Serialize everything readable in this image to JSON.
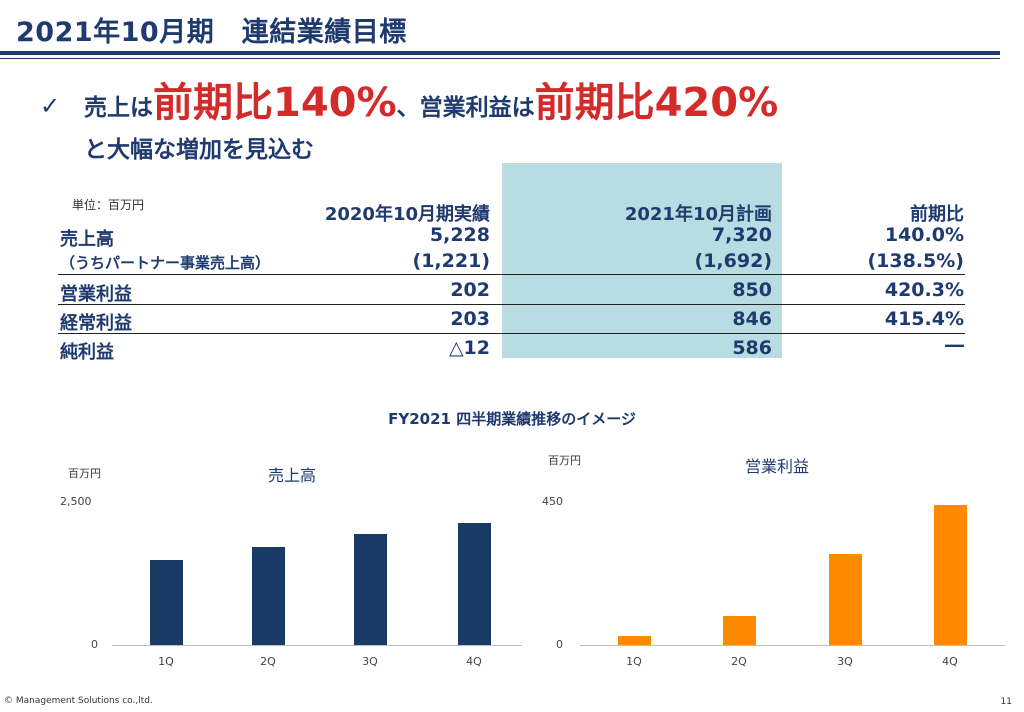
{
  "title": "2021年10月期　連結業績目標",
  "headline": {
    "part1": "売上は",
    "highlight1": "前期比140%",
    "part2": "、営業利益は",
    "highlight2": "前期比420%",
    "line2": "と大幅な増加を見込む"
  },
  "table": {
    "unit": "単位：百万円",
    "headers": [
      "2020年10月期実績",
      "2021年10月計画",
      "前期比"
    ],
    "rows": [
      {
        "label": "売上高",
        "v2020": "5,228",
        "v2021": "7,320",
        "ratio": "140.0%"
      },
      {
        "label": "（うちパートナー事業売上高）",
        "v2020": "(1,221)",
        "v2021": "(1,692)",
        "ratio": "(138.5%)"
      },
      {
        "label": "営業利益",
        "v2020": "202",
        "v2021": "850",
        "ratio": "420.3%"
      },
      {
        "label": "経常利益",
        "v2020": "203",
        "v2021": "846",
        "ratio": "415.4%"
      },
      {
        "label": "純利益",
        "v2020": "△12",
        "v2021": "586",
        "ratio": "―"
      }
    ]
  },
  "charts_title": "FY2021 四半期業績推移のイメージ",
  "chart_data": [
    {
      "type": "bar",
      "title": "売上高",
      "ylabel": "百万円",
      "categories": [
        "1Q",
        "2Q",
        "3Q",
        "4Q"
      ],
      "values": [
        1500,
        1720,
        1960,
        2140
      ],
      "ylim": [
        0,
        2500
      ],
      "yticks": [
        "0",
        "2,500"
      ],
      "color": "#1a3a66",
      "grid": false
    },
    {
      "type": "bar",
      "title": "営業利益",
      "ylabel": "百万円",
      "categories": [
        "1Q",
        "2Q",
        "3Q",
        "4Q"
      ],
      "values": [
        27,
        92,
        288,
        443
      ],
      "ylim": [
        0,
        450
      ],
      "yticks": [
        "0",
        "450"
      ],
      "color": "#ff8a00",
      "grid": false
    }
  ],
  "footer": "© Management Solutions co.,ltd.",
  "page_number": "11"
}
